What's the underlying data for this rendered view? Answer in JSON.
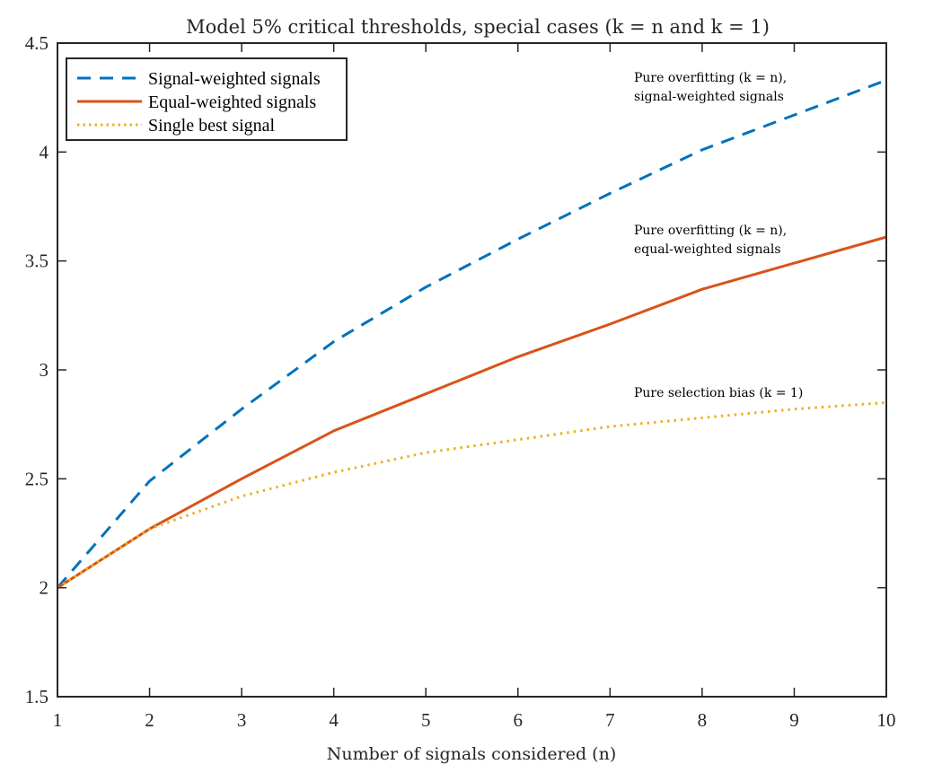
{
  "chart_data": {
    "type": "line",
    "title": "Model 5% critical thresholds, special cases (k = n and k = 1)",
    "xlabel": "Number of signals considered (n)",
    "ylabel": "",
    "x": [
      1,
      2,
      3,
      4,
      5,
      6,
      7,
      8,
      9,
      10
    ],
    "xlim": [
      1,
      10
    ],
    "ylim": [
      1.5,
      4.5
    ],
    "xticks": [
      "1",
      "2",
      "3",
      "4",
      "5",
      "6",
      "7",
      "8",
      "9",
      "10"
    ],
    "yticks": [
      "1.5",
      "2",
      "2.5",
      "3",
      "3.5",
      "4",
      "4.5"
    ],
    "ytick_values": [
      1.5,
      2,
      2.5,
      3,
      3.5,
      4,
      4.5
    ],
    "grid": false,
    "legend_position": "top-left",
    "series": [
      {
        "name": "Signal-weighted signals",
        "style": "dashed",
        "color": "#0072BD",
        "values": [
          2.0,
          2.49,
          2.82,
          3.13,
          3.38,
          3.6,
          3.81,
          4.01,
          4.17,
          4.33
        ]
      },
      {
        "name": "Equal-weighted signals",
        "style": "solid",
        "color": "#D95319",
        "values": [
          2.0,
          2.27,
          2.5,
          2.72,
          2.89,
          3.06,
          3.21,
          3.37,
          3.49,
          3.61
        ]
      },
      {
        "name": "Single best signal",
        "style": "dotted",
        "color": "#EDB120",
        "values": [
          2.0,
          2.27,
          2.42,
          2.53,
          2.62,
          2.68,
          2.74,
          2.78,
          2.82,
          2.85
        ]
      }
    ],
    "annotations": [
      {
        "lines": [
          "Pure overfitting (k = n),",
          "signal-weighted signals"
        ],
        "series": "Signal-weighted signals"
      },
      {
        "lines": [
          "Pure overfitting (k = n),",
          "equal-weighted signals"
        ],
        "series": "Equal-weighted signals"
      },
      {
        "lines": [
          "Pure selection bias (k = 1)"
        ],
        "series": "Single best signal"
      }
    ]
  }
}
